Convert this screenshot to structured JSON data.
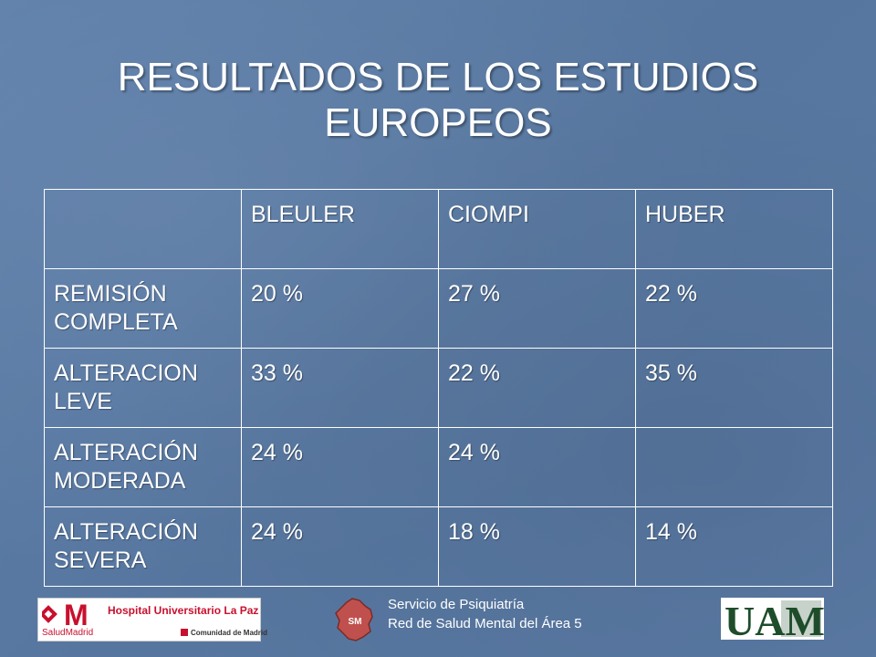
{
  "slide": {
    "title_line1": "RESULTADOS DE LOS ESTUDIOS",
    "title_line2": "EUROPEOS"
  },
  "table": {
    "headers": [
      "",
      "BLEULER",
      "CIOMPI",
      "HUBER"
    ],
    "rows": [
      {
        "label_line1": "REMISIÓN",
        "label_line2": "COMPLETA",
        "values": [
          "20 %",
          "27 %",
          "22 %"
        ]
      },
      {
        "label_line1": "ALTERACION",
        "label_line2": "LEVE",
        "values": [
          "33 %",
          "22 %",
          "35 %"
        ]
      },
      {
        "label_line1": "ALTERACIÓN",
        "label_line2": "MODERADA",
        "values": [
          "24 %",
          "24 %",
          ""
        ]
      },
      {
        "label_line1": "ALTERACIÓN",
        "label_line2": "SEVERA",
        "values": [
          "24 %",
          "18 %",
          "14 %"
        ]
      }
    ]
  },
  "footer": {
    "hospital_name": "Hospital Universitario La Paz",
    "salud_madrid": "SaludMadrid",
    "comunidad": "Comunidad de Madrid",
    "sm_badge": "SM",
    "service_line1": "Servicio de Psiquiatría",
    "service_line2": "Red de Salud Mental del Área 5",
    "uam_logo": "UAM"
  },
  "colors": {
    "background": "#5a7aa6",
    "text": "#ffffff",
    "madrid_red": "#c8102e",
    "uam_green": "#1e4d2b"
  }
}
